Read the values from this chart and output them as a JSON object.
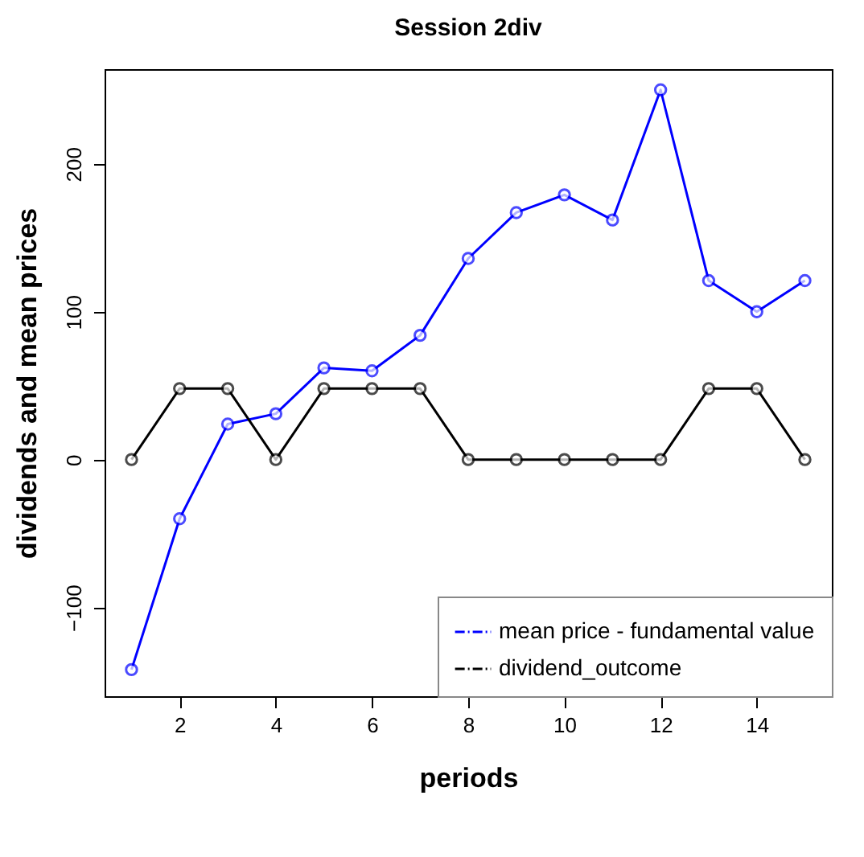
{
  "chart_data": {
    "type": "line",
    "title": "Session 2div",
    "xlabel": "periods",
    "ylabel": "dividends and mean prices",
    "x": [
      1,
      2,
      3,
      4,
      5,
      6,
      7,
      8,
      9,
      10,
      11,
      12,
      13,
      14,
      15
    ],
    "series": [
      {
        "name": "mean price - fundamental value",
        "color": "#0000ff",
        "values": [
          -142,
          -40,
          24,
          31,
          62,
          60,
          84,
          136,
          167,
          179,
          162,
          250,
          121,
          100,
          121
        ]
      },
      {
        "name": "dividend_outcome",
        "color": "#000000",
        "values": [
          0,
          48,
          48,
          0,
          48,
          48,
          48,
          0,
          0,
          0,
          0,
          0,
          48,
          48,
          0
        ]
      }
    ],
    "xlim": [
      0.44,
      15.56
    ],
    "xticks": [
      2,
      4,
      6,
      8,
      10,
      12,
      14
    ],
    "ylim": [
      -160,
      264
    ],
    "yticks": [
      -100,
      0,
      100,
      200
    ],
    "grid": false,
    "legend": "bottom right",
    "marker": "circle",
    "line_style": "solid"
  }
}
